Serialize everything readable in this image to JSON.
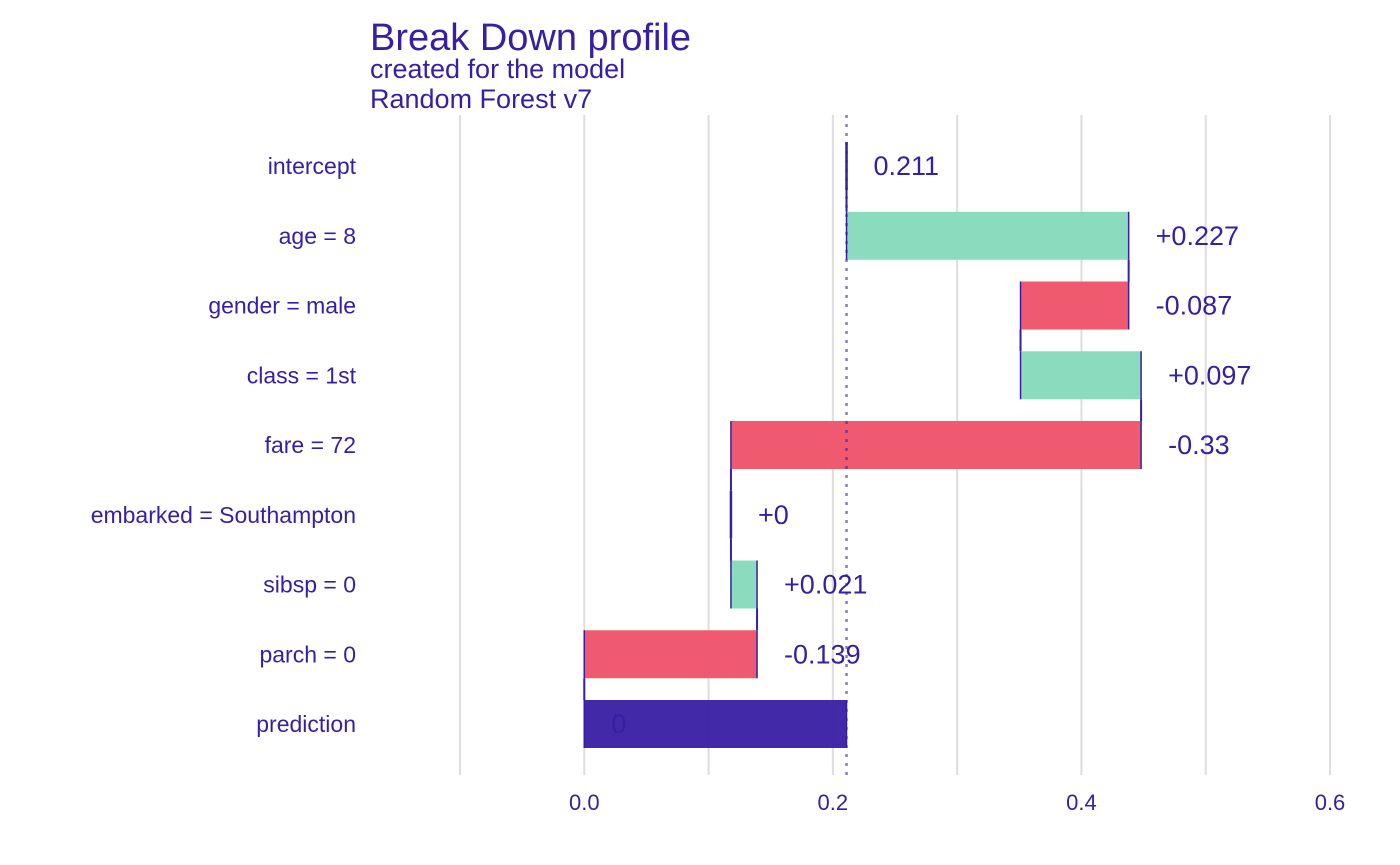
{
  "chart_data": {
    "type": "bar",
    "subtype": "waterfall",
    "title": "Break Down profile",
    "subtitle_line1": "created for the  model",
    "subtitle_line2": "Random Forest v7",
    "categories": [
      "intercept",
      "age = 8",
      "gender = male",
      "class = 1st",
      "fare = 72",
      "embarked = Southampton",
      "sibsp = 0",
      "parch = 0",
      "prediction"
    ],
    "starts": [
      0.211,
      0.211,
      0.438,
      0.351,
      0.448,
      0.118,
      0.118,
      0.139,
      0.0
    ],
    "ends": [
      0.211,
      0.438,
      0.351,
      0.448,
      0.118,
      0.118,
      0.139,
      0.0,
      0.211
    ],
    "kinds": [
      "intercept",
      "positive",
      "negative",
      "positive",
      "negative",
      "zero",
      "positive",
      "negative",
      "prediction"
    ],
    "labels": [
      "0.211",
      "+0.227",
      "-0.087",
      "+0.097",
      "-0.33",
      "+0",
      "+0.021",
      "-0.139",
      "0"
    ],
    "baseline": 0.211,
    "xlim": [
      -0.1,
      0.6
    ],
    "xticks": [
      "0.0",
      "0.2",
      "0.4",
      "0.6"
    ],
    "xtick_values": [
      0.0,
      0.2,
      0.4,
      0.6
    ],
    "grid": true,
    "colors": {
      "text": "#371ea3",
      "positive": "#8bdcbe",
      "negative": "#f05a71",
      "prediction": "#371ea3",
      "grid": "#dedede",
      "baseline": "#371ea3"
    }
  }
}
